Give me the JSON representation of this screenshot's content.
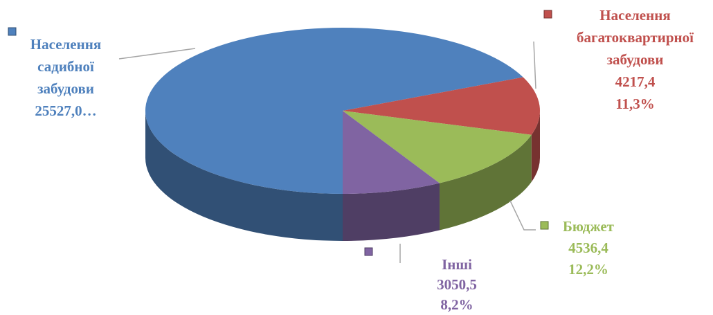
{
  "chart_data": {
    "type": "pie",
    "categories": [
      "Населення садибної забудови",
      "Населення багатоквартирної забудови",
      "Бюджет",
      "Інші"
    ],
    "values": [
      25527.0,
      4217.4,
      4536.4,
      3050.5
    ],
    "value_labels": [
      "25527,0…",
      "4217,4",
      "4536,4",
      "3050,5"
    ],
    "percents": [
      null,
      11.3,
      12.2,
      8.2
    ],
    "percent_labels": [
      null,
      "11,3%",
      "12,2%",
      "8,2%"
    ],
    "colors": [
      "#4f81bd",
      "#c0504d",
      "#9bbb59",
      "#8064a2"
    ]
  }
}
